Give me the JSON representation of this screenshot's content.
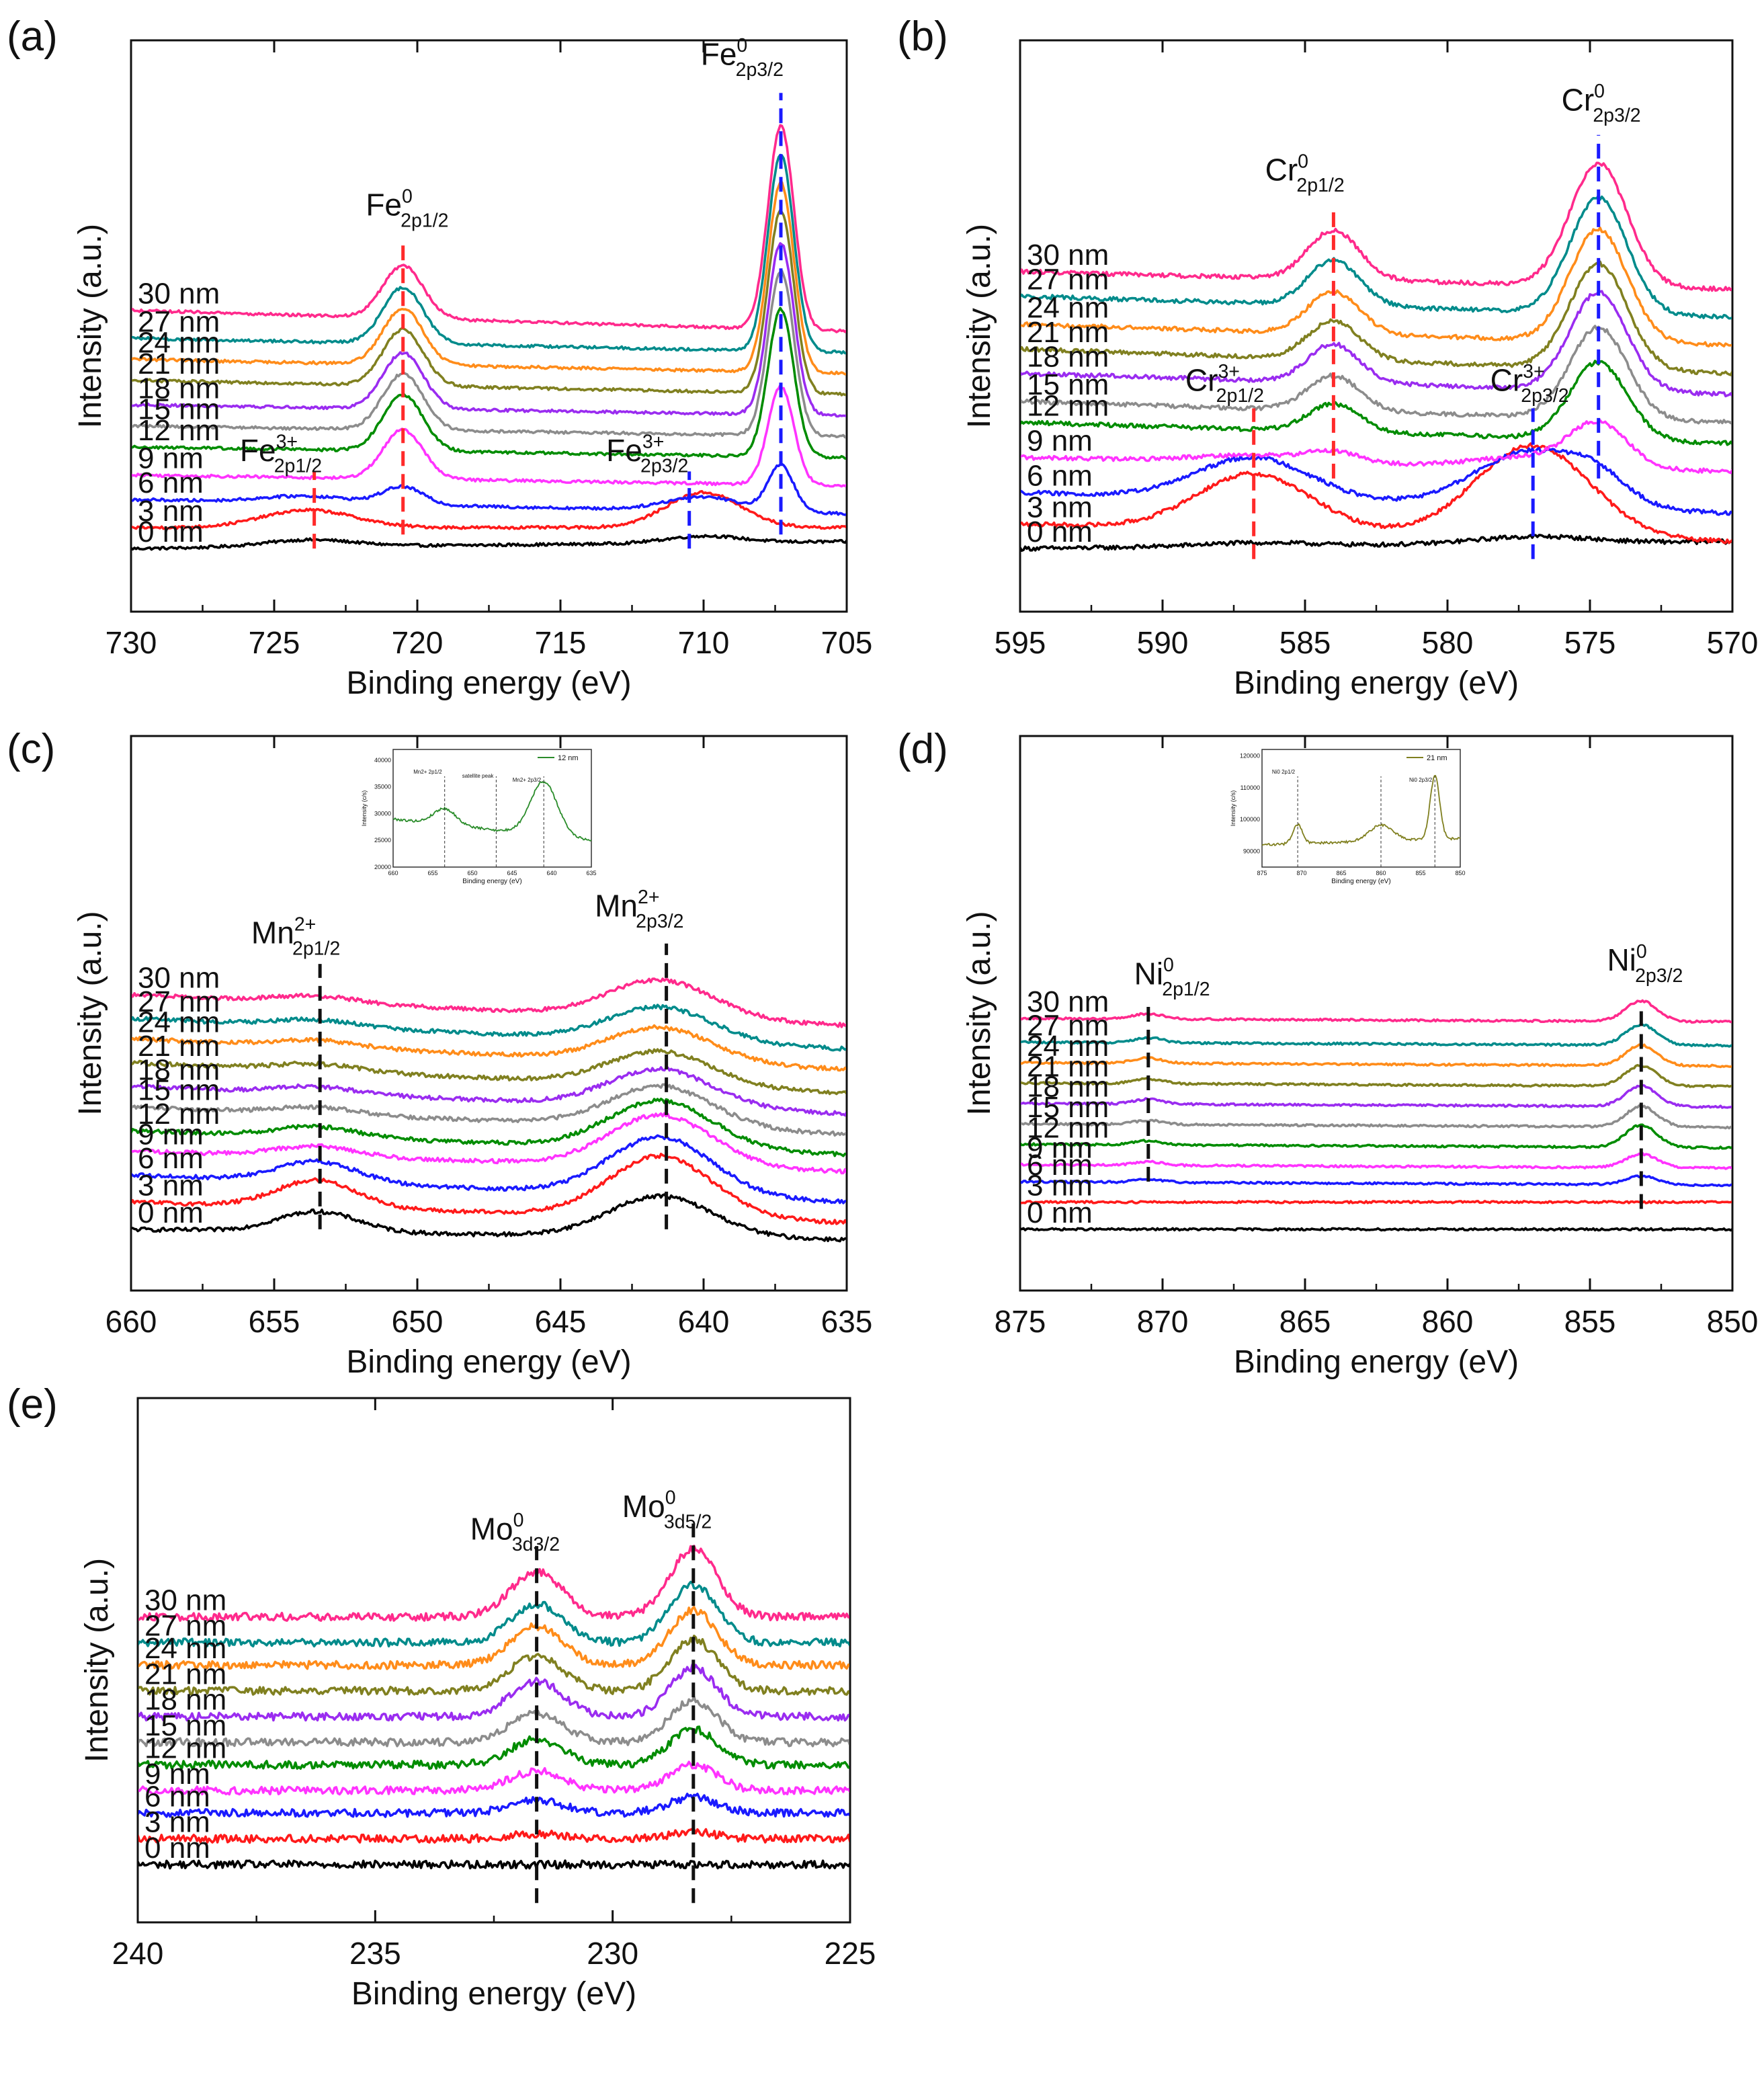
{
  "figure": {
    "series_colors": {
      "0 nm": "#000000",
      "3 nm": "#ff1a1a",
      "6 nm": "#1a1aff",
      "9 nm": "#ff33ff",
      "12 nm": "#008c00",
      "15 nm": "#8c8c8c",
      "18 nm": "#9a2cf0",
      "21 nm": "#808020",
      "24 nm": "#ff8c1a",
      "27 nm": "#008b8b",
      "30 nm": "#ff2a8c"
    }
  },
  "chart_data": [
    {
      "panel": "(a)",
      "type": "line",
      "xlabel": "Binding energy (eV)",
      "ylabel": "Intensity (a.u.)",
      "xlim": [
        730,
        705
      ],
      "xticks": [
        "730",
        "725",
        "720",
        "715",
        "710",
        "705"
      ],
      "series": [
        {
          "name": "0 nm",
          "baseline": 0.0,
          "edge_high": 0.02
        },
        {
          "name": "3 nm",
          "baseline": 0.06,
          "edge_high": 0.06
        },
        {
          "name": "6 nm",
          "baseline": 0.14,
          "edge_high": 0.1
        },
        {
          "name": "9 nm",
          "baseline": 0.21,
          "edge_high": 0.18
        },
        {
          "name": "12 nm",
          "baseline": 0.29,
          "edge_high": 0.26
        },
        {
          "name": "15 nm",
          "baseline": 0.35,
          "edge_high": 0.32
        },
        {
          "name": "18 nm",
          "baseline": 0.41,
          "edge_high": 0.38
        },
        {
          "name": "21 nm",
          "baseline": 0.48,
          "edge_high": 0.44
        },
        {
          "name": "24 nm",
          "baseline": 0.54,
          "edge_high": 0.5
        },
        {
          "name": "27 nm",
          "baseline": 0.6,
          "edge_high": 0.56
        },
        {
          "name": "30 nm",
          "baseline": 0.68,
          "edge_high": 0.62
        }
      ],
      "series_labels": [
        "30 nm",
        "27 nm",
        "24 nm",
        "21 nm",
        "18 nm",
        "15 nm",
        "12 nm",
        "9 nm",
        "6 nm",
        "3 nm",
        "0 nm"
      ],
      "peaks": [
        {
          "center": 720.5,
          "sigma": 0.7,
          "amps": [
            0,
            0,
            0.05,
            0.14,
            0.16,
            0.16,
            0.16,
            0.16,
            0.16,
            0.16,
            0.15
          ]
        },
        {
          "center": 707.3,
          "sigma": 0.45,
          "amps": [
            0,
            0,
            0.13,
            0.28,
            0.42,
            0.47,
            0.49,
            0.52,
            0.54,
            0.56,
            0.58
          ]
        },
        {
          "center": 710.0,
          "sigma": 1.3,
          "amps": [
            0.02,
            0.1,
            0.04,
            0,
            0,
            0,
            0,
            0,
            0,
            0,
            0
          ]
        },
        {
          "center": 723.8,
          "sigma": 1.6,
          "amps": [
            0.02,
            0.05,
            0.02,
            0,
            0,
            0,
            0,
            0,
            0,
            0,
            0
          ]
        }
      ],
      "peak_lines": [
        {
          "x": 720.5,
          "color": "#ff2a2a",
          "from": 0.04,
          "to": 0.88
        },
        {
          "x": 707.3,
          "color": "#1a1aff",
          "from": 0.04,
          "to": 1.3
        },
        {
          "x": 723.6,
          "color": "#ff2a2a",
          "from": 0.0,
          "to": 0.22
        },
        {
          "x": 710.5,
          "color": "#1a1aff",
          "from": 0.0,
          "to": 0.22
        }
      ],
      "annotations": [
        {
          "el": "Fe",
          "sup": "0",
          "sub": "2p1/2",
          "x": 721.8,
          "y": 0.95
        },
        {
          "el": "Fe",
          "sup": "0",
          "sub": "2p3/2",
          "x": 710.1,
          "y": 1.38
        },
        {
          "el": "Fe",
          "sup": "3+",
          "sub": "2p1/2",
          "x": 726.2,
          "y": 0.25
        },
        {
          "el": "Fe",
          "sup": "3+",
          "sub": "2p3/2",
          "x": 713.4,
          "y": 0.25
        }
      ],
      "inset": null,
      "noise": 0.004
    },
    {
      "panel": "(b)",
      "type": "line",
      "xlabel": "Binding energy (eV)",
      "ylabel": "Intensity (a.u.)",
      "xlim": [
        595,
        570
      ],
      "xticks": [
        "595",
        "590",
        "585",
        "580",
        "575",
        "570"
      ],
      "series": [
        {
          "name": "0 nm",
          "baseline": 0.0,
          "edge_high": 0.02
        },
        {
          "name": "3 nm",
          "baseline": 0.07,
          "edge_high": 0.02
        },
        {
          "name": "6 nm",
          "baseline": 0.16,
          "edge_high": 0.1
        },
        {
          "name": "9 nm",
          "baseline": 0.26,
          "edge_high": 0.22
        },
        {
          "name": "12 nm",
          "baseline": 0.36,
          "edge_high": 0.3
        },
        {
          "name": "15 nm",
          "baseline": 0.42,
          "edge_high": 0.36
        },
        {
          "name": "18 nm",
          "baseline": 0.5,
          "edge_high": 0.44
        },
        {
          "name": "21 nm",
          "baseline": 0.57,
          "edge_high": 0.5
        },
        {
          "name": "24 nm",
          "baseline": 0.64,
          "edge_high": 0.58
        },
        {
          "name": "27 nm",
          "baseline": 0.72,
          "edge_high": 0.66
        },
        {
          "name": "30 nm",
          "baseline": 0.79,
          "edge_high": 0.74
        }
      ],
      "series_labels": [
        "30 nm",
        "27 nm",
        "24 nm",
        "21 nm",
        "18 nm",
        "15 nm",
        "12 nm",
        "9 nm",
        "6 nm",
        "3 nm",
        "0 nm"
      ],
      "peaks": [
        {
          "center": 584.0,
          "sigma": 0.9,
          "amps": [
            0,
            0,
            0,
            0.03,
            0.08,
            0.1,
            0.11,
            0.11,
            0.12,
            0.13,
            0.14
          ]
        },
        {
          "center": 574.7,
          "sigma": 1.0,
          "amps": [
            0,
            0,
            0.05,
            0.12,
            0.22,
            0.26,
            0.28,
            0.3,
            0.32,
            0.33,
            0.35
          ]
        },
        {
          "center": 586.8,
          "sigma": 2.0,
          "amps": [
            0.01,
            0.16,
            0.12,
            0.02,
            0,
            0,
            0,
            0,
            0,
            0,
            0
          ]
        },
        {
          "center": 577.0,
          "sigma": 2.0,
          "amps": [
            0.02,
            0.26,
            0.16,
            0.03,
            0,
            0,
            0,
            0,
            0,
            0,
            0
          ]
        }
      ],
      "peak_lines": [
        {
          "x": 584.0,
          "color": "#ff2a2a",
          "from": 0.2,
          "to": 0.97
        },
        {
          "x": 574.7,
          "color": "#1a1aff",
          "from": 0.2,
          "to": 1.18
        },
        {
          "x": 586.8,
          "color": "#ff2a2a",
          "from": -0.03,
          "to": 0.4
        },
        {
          "x": 577.0,
          "color": "#1a1aff",
          "from": -0.03,
          "to": 0.4
        }
      ],
      "annotations": [
        {
          "el": "Cr",
          "sup": "0",
          "sub": "2p1/2",
          "x": 586.4,
          "y": 1.05
        },
        {
          "el": "Cr",
          "sup": "0",
          "sub": "2p3/2",
          "x": 576.0,
          "y": 1.25
        },
        {
          "el": "Cr",
          "sup": "3+",
          "sub": "2p1/2",
          "x": 589.2,
          "y": 0.45
        },
        {
          "el": "Cr",
          "sup": "3+",
          "sub": "2p3/2",
          "x": 578.5,
          "y": 0.45
        }
      ],
      "inset": null,
      "noise": 0.006
    },
    {
      "panel": "(c)",
      "type": "line",
      "xlabel": "Binding energy (eV)",
      "ylabel": "Intensity (a.u.)",
      "xlim": [
        660,
        635
      ],
      "xticks": [
        "660",
        "655",
        "650",
        "645",
        "640",
        "635"
      ],
      "series": [
        {
          "name": "0 nm",
          "baseline": 0.0,
          "edge_high": -0.03
        },
        {
          "name": "3 nm",
          "baseline": 0.08,
          "edge_high": 0.02
        },
        {
          "name": "6 nm",
          "baseline": 0.16,
          "edge_high": 0.08
        },
        {
          "name": "9 nm",
          "baseline": 0.23,
          "edge_high": 0.17
        },
        {
          "name": "12 nm",
          "baseline": 0.29,
          "edge_high": 0.22
        },
        {
          "name": "15 nm",
          "baseline": 0.36,
          "edge_high": 0.28
        },
        {
          "name": "18 nm",
          "baseline": 0.42,
          "edge_high": 0.34
        },
        {
          "name": "21 nm",
          "baseline": 0.49,
          "edge_high": 0.4
        },
        {
          "name": "24 nm",
          "baseline": 0.56,
          "edge_high": 0.47
        },
        {
          "name": "27 nm",
          "baseline": 0.62,
          "edge_high": 0.53
        },
        {
          "name": "30 nm",
          "baseline": 0.69,
          "edge_high": 0.6
        }
      ],
      "series_labels": [
        "30 nm",
        "27 nm",
        "24 nm",
        "21 nm",
        "18 nm",
        "15 nm",
        "12 nm",
        "9 nm",
        "6 nm",
        "3 nm",
        "0 nm"
      ],
      "peaks": [
        {
          "center": 653.5,
          "sigma": 1.4,
          "amps": [
            0.06,
            0.08,
            0.06,
            0.03,
            0.03,
            0.02,
            0.02,
            0.02,
            0.02,
            0.02,
            0.02
          ]
        },
        {
          "center": 641.5,
          "sigma": 1.8,
          "amps": [
            0.12,
            0.18,
            0.17,
            0.15,
            0.14,
            0.12,
            0.11,
            0.1,
            0.1,
            0.1,
            0.11
          ]
        }
      ],
      "peak_lines": [
        {
          "x": 653.4,
          "color": "#111111",
          "from": 0.0,
          "to": 0.78
        },
        {
          "x": 641.3,
          "color": "#111111",
          "from": 0.0,
          "to": 0.84
        }
      ],
      "annotations": [
        {
          "el": "Mn",
          "sup": "2+",
          "sub": "2p1/2",
          "x": 655.8,
          "y": 0.84
        },
        {
          "el": "Mn",
          "sup": "2+",
          "sub": "2p3/2",
          "x": 643.8,
          "y": 0.92
        }
      ],
      "inset": {
        "legend": "12 nm",
        "color": "#2a8c2a",
        "xlabel": "Binding energy (eV)",
        "ylabel": "Intensity (c/s)",
        "xlim": [
          660,
          635
        ],
        "xticks": [
          "660",
          "655",
          "650",
          "645",
          "640",
          "635"
        ],
        "ylim": [
          20000,
          42000
        ],
        "yticks": [
          "20000",
          "25000",
          "30000",
          "35000",
          "40000"
        ],
        "peaks": [
          {
            "center": 653.5,
            "sigma": 1.4,
            "amp": 3000
          },
          {
            "center": 641.0,
            "sigma": 1.7,
            "amp": 10000
          }
        ],
        "base": 29000,
        "edge_high": 25000,
        "vlines": [
          653.5,
          647.0,
          641.0
        ],
        "labels": [
          "Mn2+ 2p1/2",
          "satellite peak",
          "Mn2+ 2p3/2"
        ]
      },
      "noise": 0.006
    },
    {
      "panel": "(d)",
      "type": "line",
      "xlabel": "Binding energy (eV)",
      "ylabel": "Intensity (a.u.)",
      "xlim": [
        875,
        850
      ],
      "xticks": [
        "875",
        "870",
        "865",
        "860",
        "855",
        "850"
      ],
      "series": [
        {
          "name": "0 nm",
          "baseline": 0.0,
          "edge_high": 0.0
        },
        {
          "name": "3 nm",
          "baseline": 0.08,
          "edge_high": 0.08
        },
        {
          "name": "6 nm",
          "baseline": 0.14,
          "edge_high": 0.13
        },
        {
          "name": "9 nm",
          "baseline": 0.19,
          "edge_high": 0.18
        },
        {
          "name": "12 nm",
          "baseline": 0.25,
          "edge_high": 0.24
        },
        {
          "name": "15 nm",
          "baseline": 0.31,
          "edge_high": 0.3
        },
        {
          "name": "18 nm",
          "baseline": 0.37,
          "edge_high": 0.36
        },
        {
          "name": "21 nm",
          "baseline": 0.43,
          "edge_high": 0.42
        },
        {
          "name": "24 nm",
          "baseline": 0.49,
          "edge_high": 0.48
        },
        {
          "name": "27 nm",
          "baseline": 0.55,
          "edge_high": 0.54
        },
        {
          "name": "30 nm",
          "baseline": 0.62,
          "edge_high": 0.61
        }
      ],
      "series_labels": [
        "30 nm",
        "27 nm",
        "24 nm",
        "21 nm",
        "18 nm",
        "15 nm",
        "12 nm",
        "9 nm",
        "6 nm",
        "3 nm",
        "0 nm"
      ],
      "peaks": [
        {
          "center": 870.5,
          "sigma": 0.5,
          "amps": [
            0,
            0,
            0.008,
            0.01,
            0.012,
            0.012,
            0.014,
            0.014,
            0.015,
            0.015,
            0.016
          ]
        },
        {
          "center": 853.2,
          "sigma": 0.55,
          "amps": [
            0,
            0,
            0.025,
            0.04,
            0.065,
            0.06,
            0.06,
            0.06,
            0.06,
            0.06,
            0.06
          ]
        }
      ],
      "peak_lines": [
        {
          "x": 870.5,
          "color": "#111111",
          "from": 0.14,
          "to": 0.66
        },
        {
          "x": 853.2,
          "color": "#111111",
          "from": 0.06,
          "to": 0.66
        }
      ],
      "annotations": [
        {
          "el": "Ni",
          "sup": "0",
          "sub": "2p1/2",
          "x": 871.0,
          "y": 0.72
        },
        {
          "el": "Ni",
          "sup": "0",
          "sub": "2p3/2",
          "x": 854.4,
          "y": 0.76
        }
      ],
      "inset": {
        "legend": "21 nm",
        "color": "#808020",
        "xlabel": "Binding energy (eV)",
        "ylabel": "Intensity (c/s)",
        "xlim": [
          875,
          850
        ],
        "xticks": [
          "875",
          "870",
          "865",
          "860",
          "855",
          "850"
        ],
        "ylim": [
          85000,
          122000
        ],
        "yticks": [
          "90000",
          "100000",
          "110000",
          "120000"
        ],
        "peaks": [
          {
            "center": 870.5,
            "sigma": 0.6,
            "amp": 6000
          },
          {
            "center": 860.0,
            "sigma": 1.5,
            "amp": 5000
          },
          {
            "center": 853.2,
            "sigma": 0.6,
            "amp": 20000
          }
        ],
        "base": 92000,
        "edge_high": 94000,
        "vlines": [
          870.5,
          860.0,
          853.2
        ],
        "labels": [
          "Ni0 2p1/2",
          "",
          "Ni0 2p3/2"
        ]
      },
      "noise": 0.003
    },
    {
      "panel": "(e)",
      "type": "line",
      "xlabel": "Binding energy (eV)",
      "ylabel": "Intensity (a.u.)",
      "xlim": [
        240,
        225
      ],
      "xticks": [
        "240",
        "235",
        "230",
        "225"
      ],
      "series": [
        {
          "name": "0 nm",
          "baseline": 0.0,
          "edge_high": 0.0
        },
        {
          "name": "3 nm",
          "baseline": 0.08,
          "edge_high": 0.08
        },
        {
          "name": "6 nm",
          "baseline": 0.16,
          "edge_high": 0.16
        },
        {
          "name": "9 nm",
          "baseline": 0.23,
          "edge_high": 0.23
        },
        {
          "name": "12 nm",
          "baseline": 0.31,
          "edge_high": 0.31
        },
        {
          "name": "15 nm",
          "baseline": 0.38,
          "edge_high": 0.38
        },
        {
          "name": "18 nm",
          "baseline": 0.46,
          "edge_high": 0.46
        },
        {
          "name": "21 nm",
          "baseline": 0.54,
          "edge_high": 0.54
        },
        {
          "name": "24 nm",
          "baseline": 0.62,
          "edge_high": 0.62
        },
        {
          "name": "27 nm",
          "baseline": 0.69,
          "edge_high": 0.69
        },
        {
          "name": "30 nm",
          "baseline": 0.77,
          "edge_high": 0.77
        }
      ],
      "series_labels": [
        "30 nm",
        "27 nm",
        "24 nm",
        "21 nm",
        "18 nm",
        "15 nm",
        "12 nm",
        "9 nm",
        "6 nm",
        "3 nm",
        "0 nm"
      ],
      "peaks": [
        {
          "center": 231.6,
          "sigma": 0.55,
          "amps": [
            0,
            0.015,
            0.04,
            0.06,
            0.08,
            0.09,
            0.11,
            0.11,
            0.12,
            0.12,
            0.14
          ]
        },
        {
          "center": 228.3,
          "sigma": 0.5,
          "amps": [
            0,
            0.02,
            0.05,
            0.08,
            0.11,
            0.13,
            0.15,
            0.16,
            0.17,
            0.18,
            0.21
          ]
        }
      ],
      "peak_lines": [
        {
          "x": 231.6,
          "color": "#111111",
          "from": -0.12,
          "to": 0.99
        },
        {
          "x": 228.3,
          "color": "#111111",
          "from": -0.12,
          "to": 1.06
        }
      ],
      "annotations": [
        {
          "el": "Mo",
          "sup": "0",
          "sub": "3d3/2",
          "x": 233.0,
          "y": 1.01
        },
        {
          "el": "Mo",
          "sup": "0",
          "sub": "3d5/2",
          "x": 229.8,
          "y": 1.08
        }
      ],
      "inset": null,
      "noise": 0.012
    }
  ]
}
